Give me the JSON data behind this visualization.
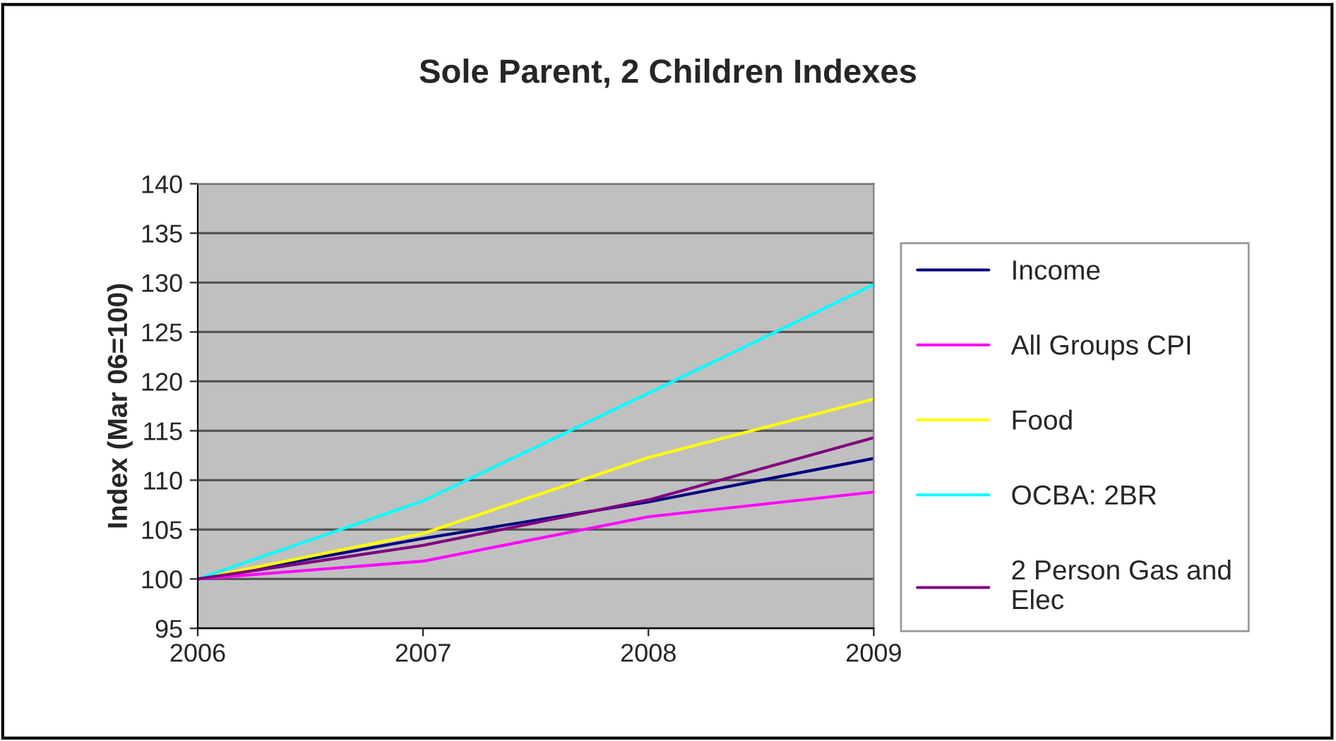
{
  "chart_data": {
    "type": "line",
    "title": "Sole Parent, 2 Children Indexes",
    "ylabel": "Index (Mar 06=100)",
    "x": [
      2006,
      2007,
      2008,
      2009
    ],
    "xlim": [
      2006,
      2009
    ],
    "xticks": [
      2006,
      2007,
      2008,
      2009
    ],
    "ylim": [
      95,
      140
    ],
    "yticks": [
      95,
      100,
      105,
      110,
      115,
      120,
      125,
      130,
      135,
      140
    ],
    "grid": "y",
    "legend": "right",
    "marker": "none",
    "line_style": "solid",
    "series": [
      {
        "name": "Income",
        "color": "#000080",
        "values": [
          100,
          104.1,
          107.8,
          112.2
        ]
      },
      {
        "name": "All Groups CPI",
        "color": "#ff00ff",
        "values": [
          100,
          101.8,
          106.3,
          108.8
        ]
      },
      {
        "name": "Food",
        "color": "#ffff00",
        "values": [
          100,
          104.6,
          112.3,
          118.2
        ]
      },
      {
        "name": "OCBA: 2BR",
        "color": "#00ffff",
        "values": [
          100,
          107.9,
          118.8,
          129.8
        ]
      },
      {
        "name": "2 Person Gas and Elec",
        "color": "#800080",
        "values": [
          100,
          103.4,
          108.0,
          114.3
        ]
      }
    ]
  }
}
